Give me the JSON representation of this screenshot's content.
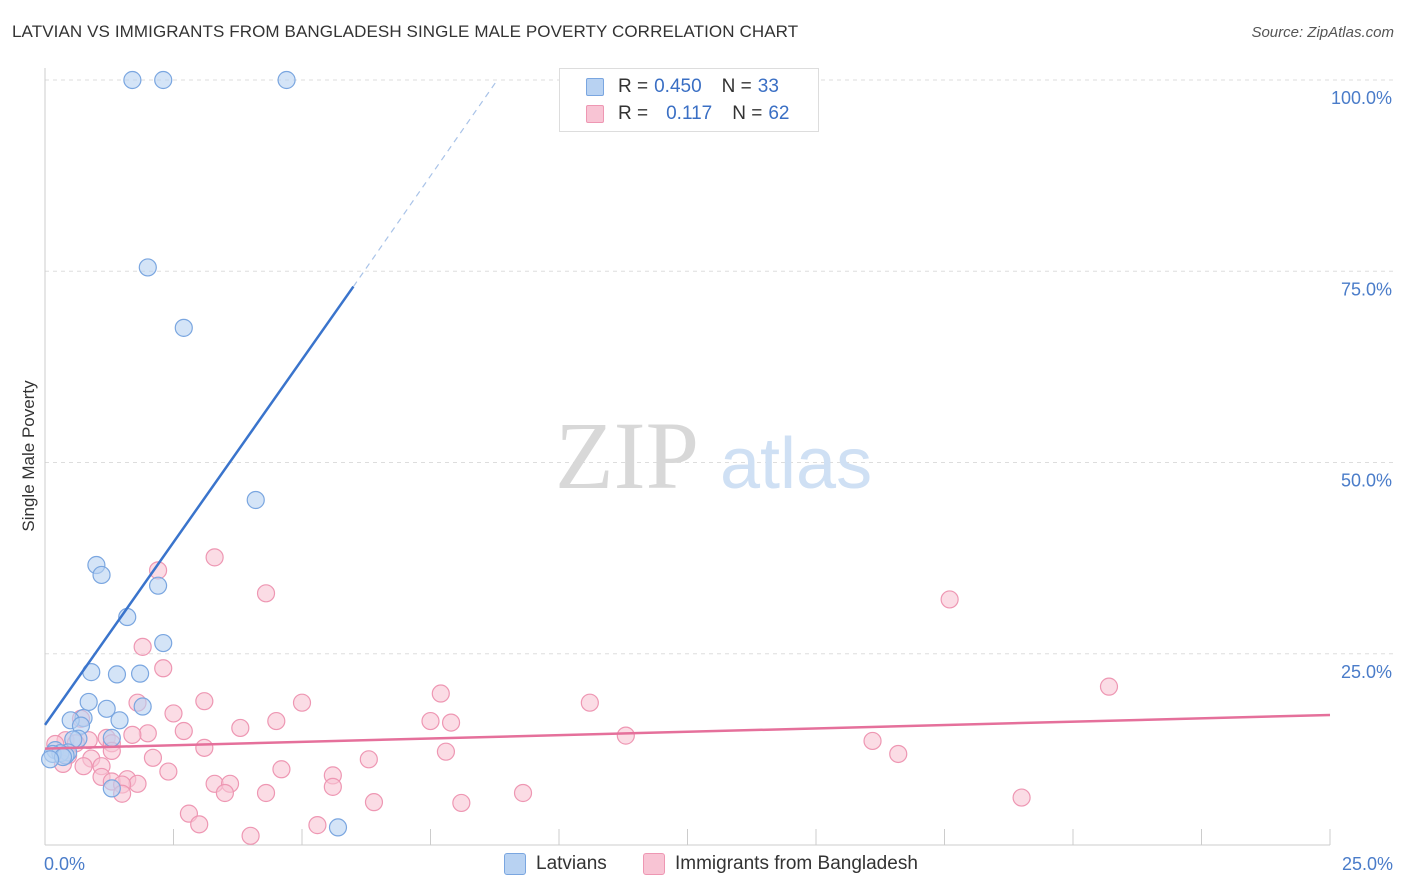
{
  "title": "LATVIAN VS IMMIGRANTS FROM BANGLADESH SINGLE MALE POVERTY CORRELATION CHART",
  "source": "Source: ZipAtlas.com",
  "watermark": {
    "zip": "ZIP",
    "atlas": "atlas"
  },
  "legend": {
    "rows": [
      {
        "r_label": "R =",
        "r_value": "0.450",
        "n_label": "N =",
        "n_value": "33"
      },
      {
        "r_label": "R =",
        "r_value": "0.117",
        "n_label": "N =",
        "n_value": "62"
      }
    ]
  },
  "colors": {
    "blue_fill": "#b8d2f2",
    "blue_stroke": "#7aa6e0",
    "blue_line": "#3a74cc",
    "pink_fill": "#f8c4d4",
    "pink_stroke": "#ee97b3",
    "pink_line": "#e5709b",
    "grid": "#dddddd",
    "axis_text": "#4a7cc9"
  },
  "chart_data": {
    "type": "scatter",
    "title": "LATVIAN VS IMMIGRANTS FROM BANGLADESH SINGLE MALE POVERTY CORRELATION CHART",
    "xlabel": "",
    "ylabel": "Single Male Poverty",
    "xlim": [
      0,
      25
    ],
    "ylim": [
      0,
      100
    ],
    "x_tick_labels": [
      {
        "value": 0,
        "label": "0.0%"
      },
      {
        "value": 25,
        "label": "25.0%"
      }
    ],
    "y_tick_labels": [
      {
        "value": 100,
        "label": "100.0%"
      },
      {
        "value": 75,
        "label": "75.0%"
      },
      {
        "value": 50,
        "label": "50.0%"
      },
      {
        "value": 25,
        "label": "25.0%"
      }
    ],
    "x_minor_ticks": [
      2.5,
      5,
      7.5,
      10,
      12.5,
      15,
      17.5,
      20,
      22.5,
      25
    ],
    "series": [
      {
        "name": "Latvians",
        "color": "blue",
        "r": 0.45,
        "n": 33,
        "trend": {
          "x0": 0,
          "y0": 15.7,
          "x1": 6.0,
          "y1": 73.0,
          "dash_x1": 8.8,
          "dash_y1": 100
        },
        "points": [
          [
            1.7,
            100
          ],
          [
            2.3,
            100
          ],
          [
            4.7,
            100
          ],
          [
            2.0,
            75.5
          ],
          [
            2.7,
            67.6
          ],
          [
            4.1,
            45.1
          ],
          [
            1.0,
            36.6
          ],
          [
            1.1,
            35.3
          ],
          [
            2.2,
            33.9
          ],
          [
            1.6,
            29.8
          ],
          [
            2.3,
            26.4
          ],
          [
            0.9,
            22.6
          ],
          [
            1.4,
            22.3
          ],
          [
            1.85,
            22.4
          ],
          [
            0.85,
            18.7
          ],
          [
            1.9,
            18.1
          ],
          [
            1.2,
            17.8
          ],
          [
            0.75,
            16.6
          ],
          [
            0.5,
            16.3
          ],
          [
            1.45,
            16.3
          ],
          [
            0.7,
            15.6
          ],
          [
            1.3,
            14.0
          ],
          [
            0.65,
            13.9
          ],
          [
            0.55,
            13.8
          ],
          [
            0.2,
            12.4
          ],
          [
            0.45,
            12.1
          ],
          [
            0.3,
            12.0
          ],
          [
            0.15,
            11.9
          ],
          [
            0.4,
            11.7
          ],
          [
            0.35,
            11.5
          ],
          [
            0.1,
            11.2
          ],
          [
            1.3,
            7.4
          ],
          [
            5.7,
            2.3
          ]
        ]
      },
      {
        "name": "Immigrants from Bangladesh",
        "color": "pink",
        "r": 0.117,
        "n": 62,
        "trend": {
          "x0": 0,
          "y0": 12.6,
          "x1": 25,
          "y1": 17.0
        },
        "points": [
          [
            3.3,
            37.6
          ],
          [
            2.2,
            35.9
          ],
          [
            4.3,
            32.9
          ],
          [
            17.6,
            32.1
          ],
          [
            1.9,
            25.9
          ],
          [
            2.3,
            23.1
          ],
          [
            20.7,
            20.7
          ],
          [
            7.7,
            19.8
          ],
          [
            3.1,
            18.8
          ],
          [
            5.0,
            18.6
          ],
          [
            10.6,
            18.6
          ],
          [
            1.8,
            18.6
          ],
          [
            2.5,
            17.2
          ],
          [
            0.7,
            16.5
          ],
          [
            4.5,
            16.2
          ],
          [
            7.5,
            16.2
          ],
          [
            7.9,
            16.0
          ],
          [
            3.8,
            15.3
          ],
          [
            2.7,
            14.9
          ],
          [
            2.0,
            14.6
          ],
          [
            1.7,
            14.4
          ],
          [
            11.3,
            14.3
          ],
          [
            1.2,
            14.0
          ],
          [
            0.85,
            13.7
          ],
          [
            0.4,
            13.7
          ],
          [
            0.6,
            13.3
          ],
          [
            1.3,
            13.3
          ],
          [
            0.2,
            13.2
          ],
          [
            16.1,
            13.6
          ],
          [
            3.1,
            12.7
          ],
          [
            1.3,
            12.3
          ],
          [
            7.8,
            12.2
          ],
          [
            16.6,
            11.9
          ],
          [
            2.1,
            11.4
          ],
          [
            6.3,
            11.2
          ],
          [
            0.45,
            11.7
          ],
          [
            0.9,
            11.3
          ],
          [
            0.75,
            10.3
          ],
          [
            0.35,
            10.6
          ],
          [
            1.1,
            10.3
          ],
          [
            4.6,
            9.9
          ],
          [
            2.4,
            9.6
          ],
          [
            5.6,
            9.1
          ],
          [
            1.1,
            8.9
          ],
          [
            1.3,
            8.3
          ],
          [
            1.6,
            8.6
          ],
          [
            1.8,
            8.0
          ],
          [
            3.3,
            8.0
          ],
          [
            3.6,
            8.0
          ],
          [
            1.5,
            7.9
          ],
          [
            5.6,
            7.6
          ],
          [
            9.3,
            6.8
          ],
          [
            1.5,
            6.7
          ],
          [
            3.5,
            6.8
          ],
          [
            4.3,
            6.8
          ],
          [
            19.0,
            6.2
          ],
          [
            6.4,
            5.6
          ],
          [
            8.1,
            5.5
          ],
          [
            2.8,
            4.1
          ],
          [
            3.0,
            2.7
          ],
          [
            5.3,
            2.6
          ],
          [
            4.0,
            1.2
          ]
        ]
      }
    ]
  },
  "bottom_legend": {
    "latvians": "Latvians",
    "bangladesh": "Immigrants from Bangladesh"
  }
}
